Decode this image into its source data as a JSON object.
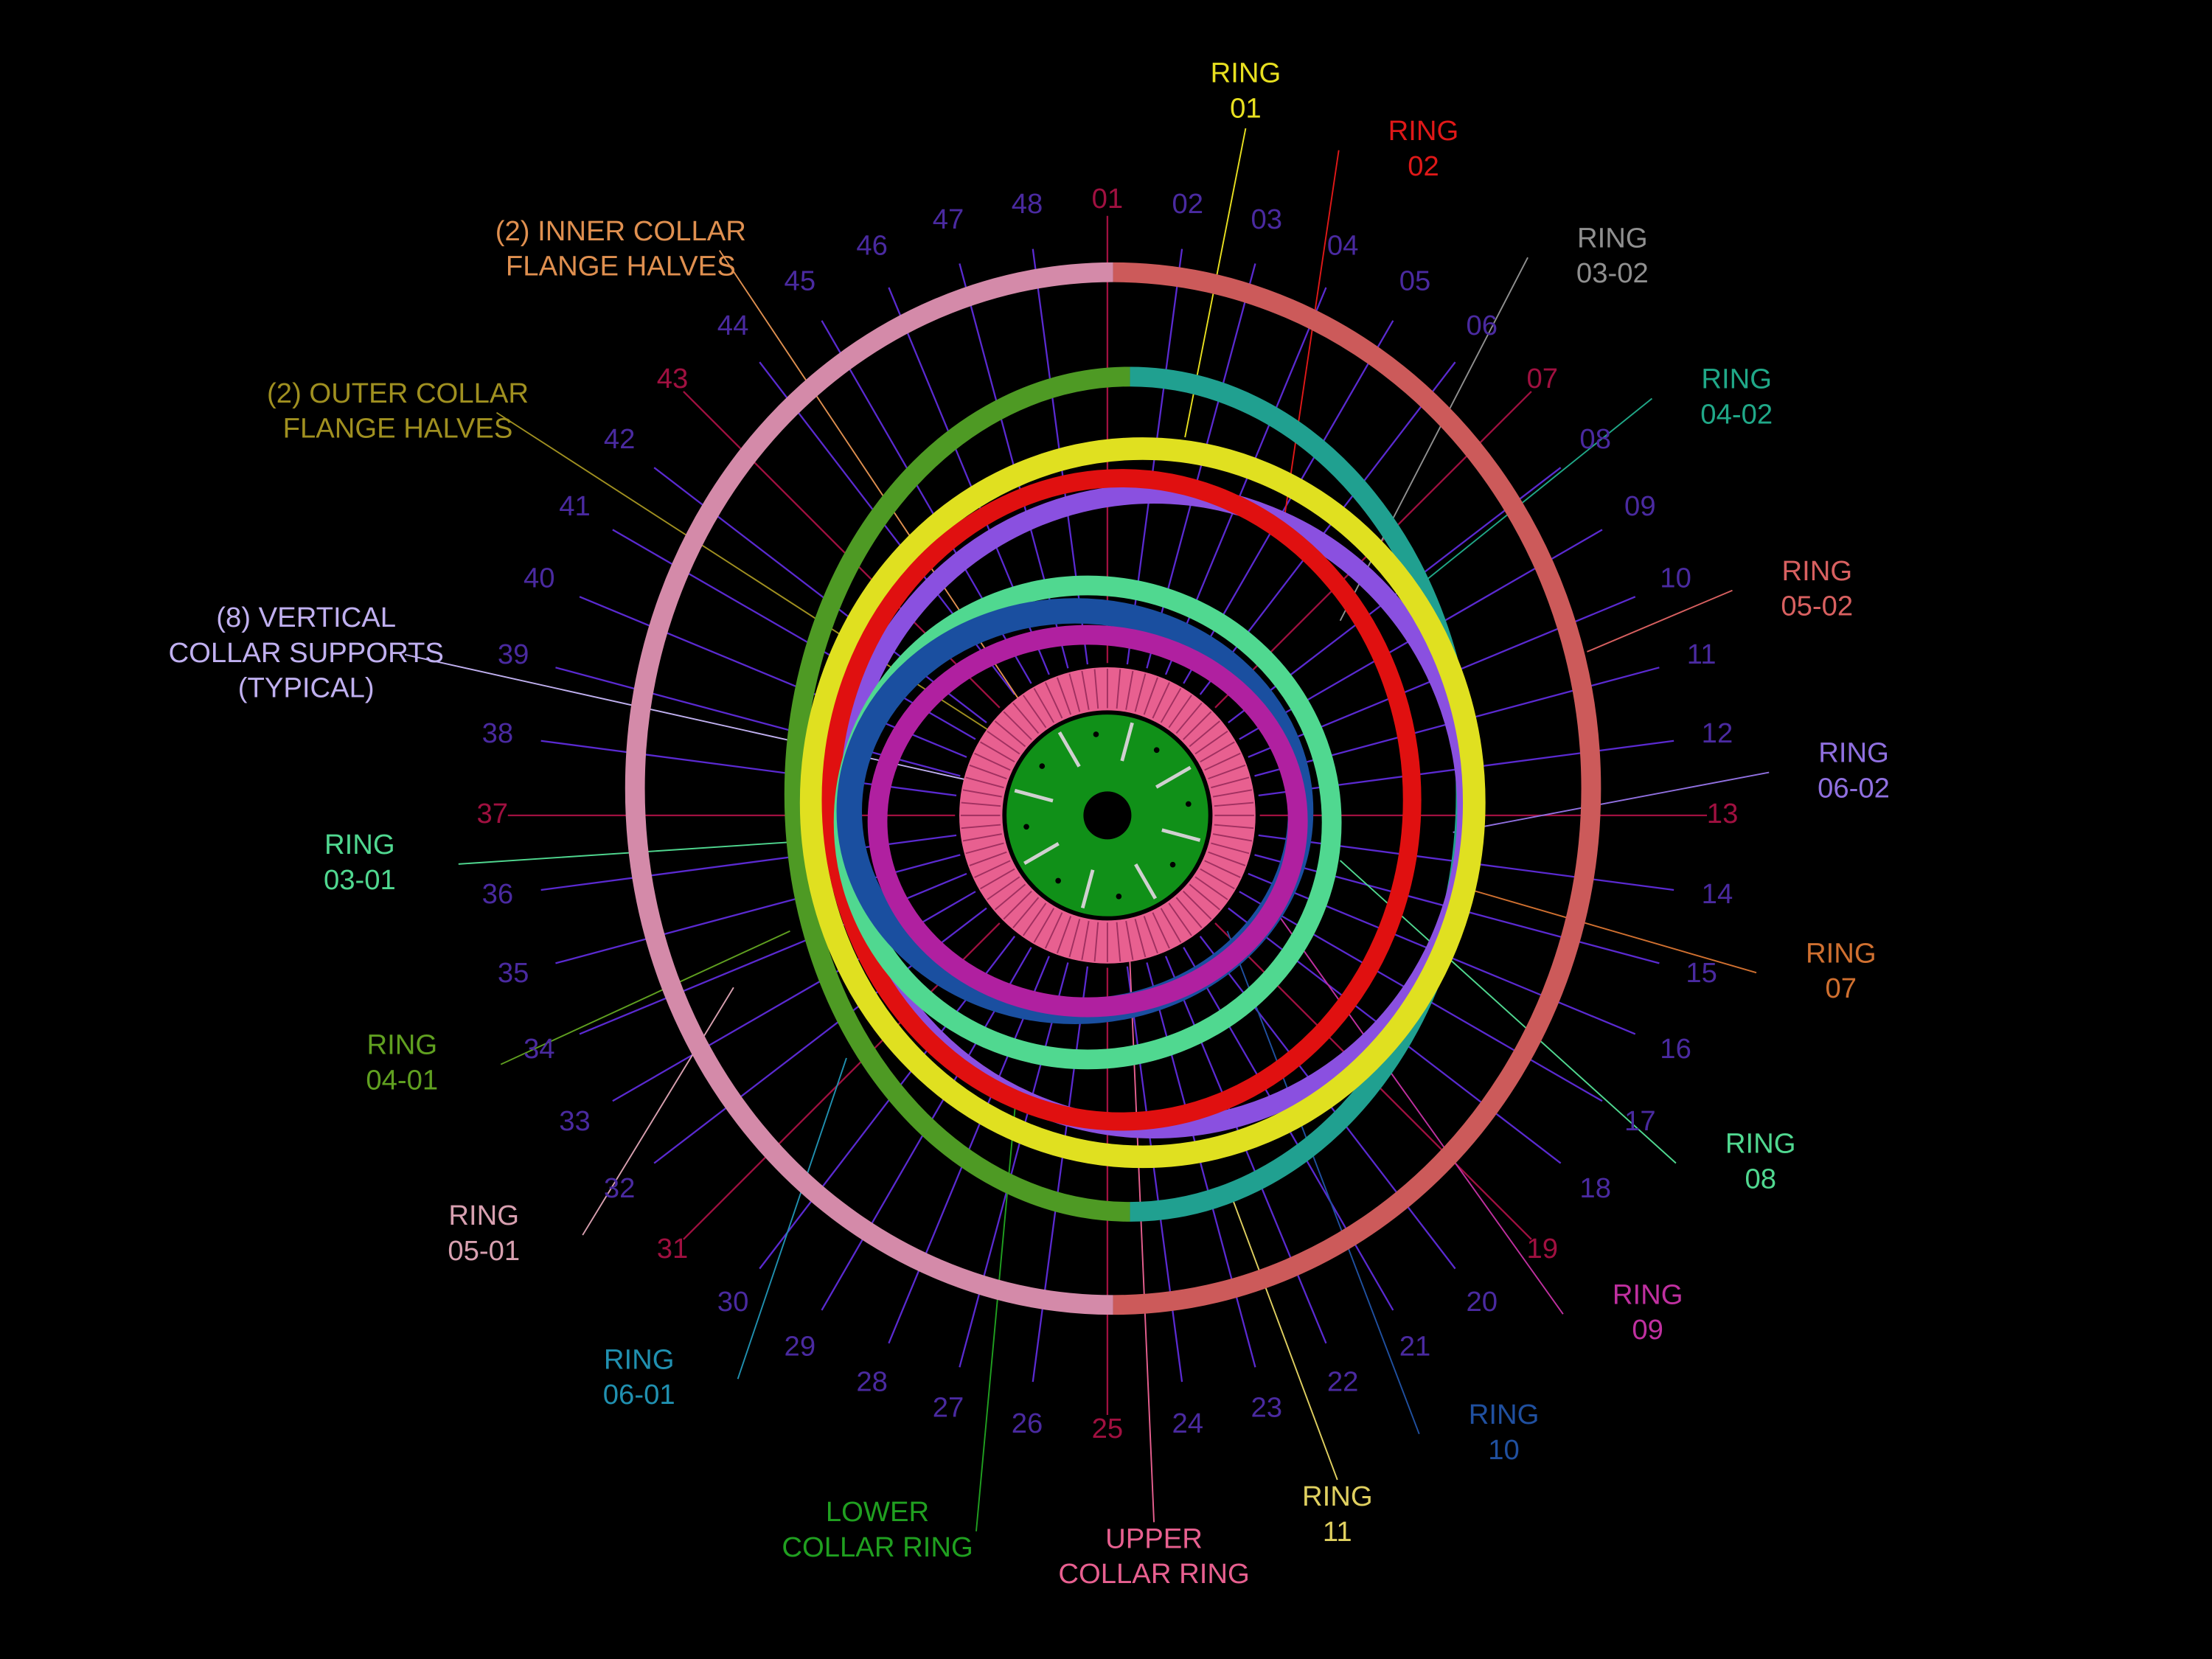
{
  "spokes": [
    "01",
    "02",
    "03",
    "04",
    "05",
    "06",
    "07",
    "08",
    "09",
    "10",
    "11",
    "12",
    "13",
    "14",
    "15",
    "16",
    "17",
    "18",
    "19",
    "20",
    "21",
    "22",
    "23",
    "24",
    "25",
    "26",
    "27",
    "28",
    "29",
    "30",
    "31",
    "32",
    "33",
    "34",
    "35",
    "36",
    "37",
    "38",
    "39",
    "40",
    "41",
    "42",
    "43",
    "44",
    "45",
    "46",
    "47",
    "48"
  ],
  "callouts": [
    {
      "lines": [
        "RING",
        "01"
      ]
    },
    {
      "lines": [
        "RING",
        "02"
      ]
    },
    {
      "lines": [
        "RING",
        "03-02"
      ]
    },
    {
      "lines": [
        "RING",
        "04-02"
      ]
    },
    {
      "lines": [
        "RING",
        "05-02"
      ]
    },
    {
      "lines": [
        "RING",
        "06-02"
      ]
    },
    {
      "lines": [
        "RING",
        "07"
      ]
    },
    {
      "lines": [
        "RING",
        "08"
      ]
    },
    {
      "lines": [
        "RING",
        "09"
      ]
    },
    {
      "lines": [
        "RING",
        "10"
      ]
    },
    {
      "lines": [
        "RING",
        "11"
      ]
    },
    {
      "lines": [
        "UPPER",
        "COLLAR RING"
      ]
    },
    {
      "lines": [
        "LOWER",
        "COLLAR RING"
      ]
    },
    {
      "lines": [
        "RING",
        "06-01"
      ]
    },
    {
      "lines": [
        "RING",
        "05-01"
      ]
    },
    {
      "lines": [
        "RING",
        "04-01"
      ]
    },
    {
      "lines": [
        "RING",
        "03-01"
      ]
    },
    {
      "lines": [
        "(8) VERTICAL",
        "COLLAR SUPPORTS",
        "(TYPICAL)"
      ]
    },
    {
      "lines": [
        "(2) OUTER COLLAR",
        "FLANGE HALVES"
      ]
    },
    {
      "lines": [
        "(2) INNER COLLAR",
        "FLANGE HALVES"
      ]
    }
  ]
}
